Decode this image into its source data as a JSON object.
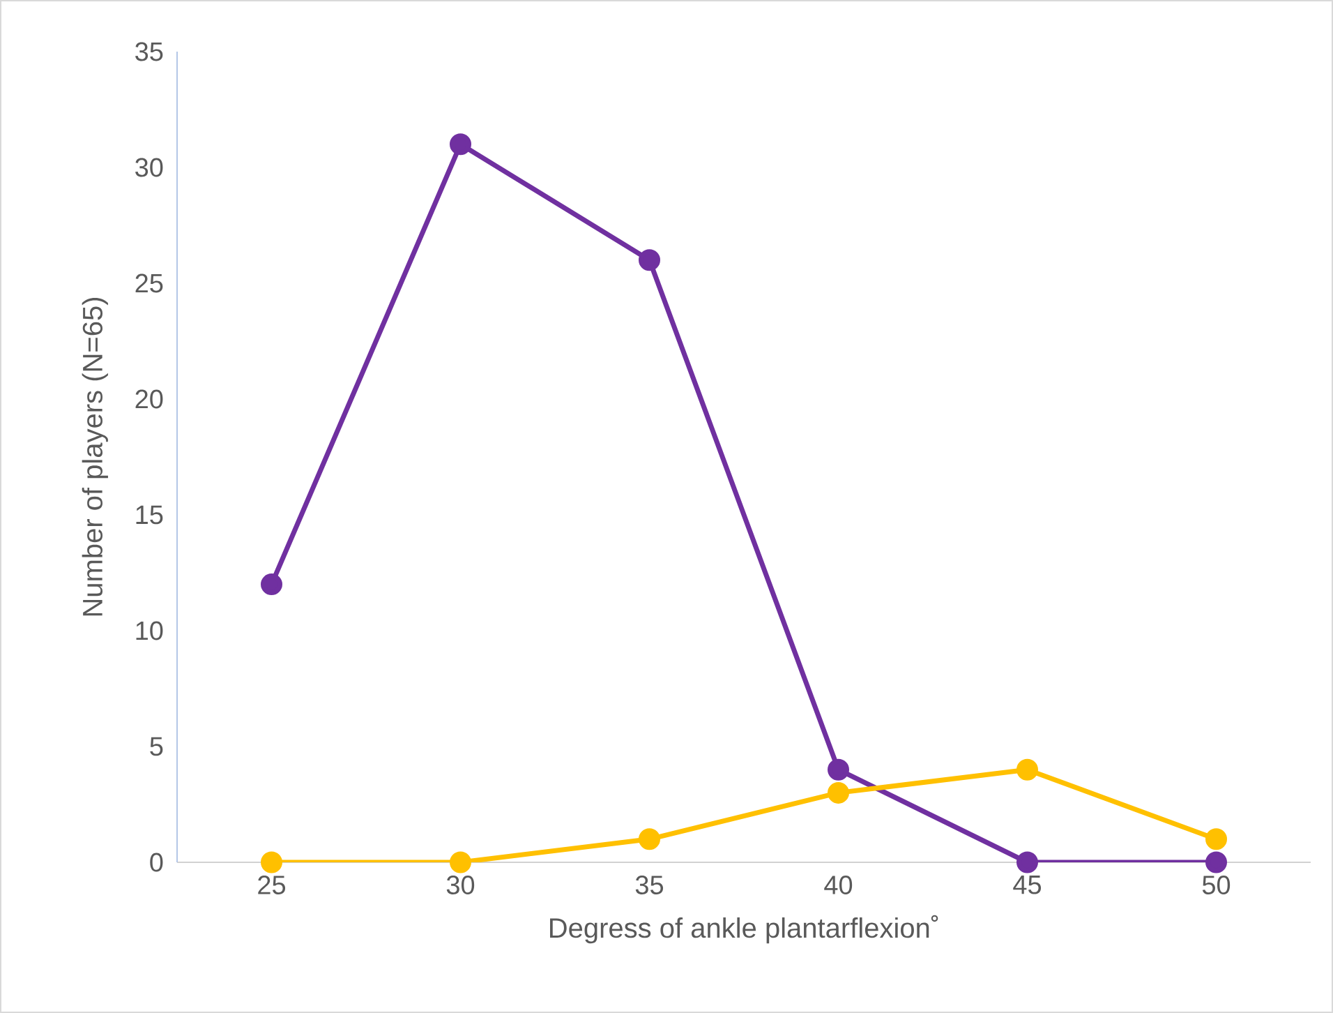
{
  "chart_data": {
    "type": "line",
    "xlabel": "Degress of ankle plantarflexion˚",
    "ylabel": "Number of players (N=65)",
    "categories": [
      "25",
      "30",
      "35",
      "40",
      "45",
      "50"
    ],
    "series": [
      {
        "color": "#7030a0",
        "values": [
          12,
          31,
          26,
          4,
          0,
          0
        ]
      },
      {
        "color": "#ffc000",
        "values": [
          0,
          0,
          1,
          3,
          4,
          1
        ]
      }
    ],
    "ylim": [
      0,
      35
    ],
    "yticks": [
      0,
      5,
      10,
      15,
      20,
      25,
      30,
      35
    ],
    "marker": "circle",
    "line_style": "solid"
  }
}
